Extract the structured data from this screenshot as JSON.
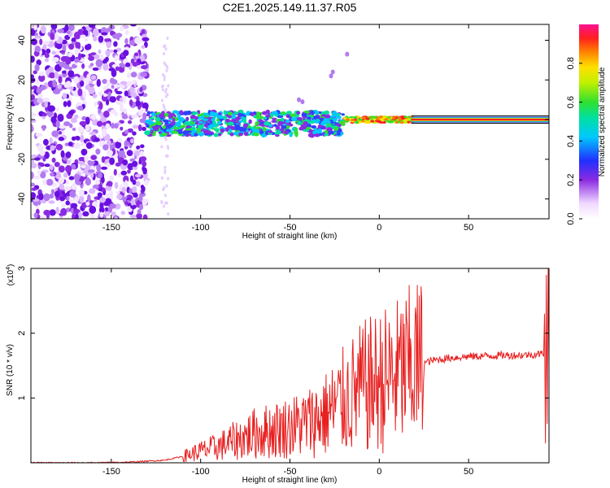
{
  "title": "C2E1.2025.149.11.37.R05",
  "chart_data": [
    {
      "type": "heatmap",
      "xlabel": "Height of straight line (km)",
      "ylabel": "Frequency (Hz)",
      "xlim": [
        -195,
        95
      ],
      "ylim": [
        -50,
        48
      ],
      "xticks": [
        -150,
        -100,
        -50,
        0,
        50
      ],
      "yticks": [
        -40,
        -20,
        0,
        20,
        40
      ],
      "colorbar": {
        "label": "Normalized spectral amplitude",
        "range": [
          0.0,
          1.0
        ],
        "ticks": [
          0.0,
          0.2,
          0.4,
          0.6,
          0.8
        ]
      },
      "description_regions": [
        {
          "x_range": [
            -195,
            -130
          ],
          "freq_range": [
            -50,
            48
          ],
          "amplitude": 0.1
        },
        {
          "x_range": [
            -130,
            -20
          ],
          "freq_center": -2,
          "amplitude": 0.3
        },
        {
          "x_range": [
            -20,
            20
          ],
          "freq_center": 0,
          "amplitude": 0.8
        },
        {
          "x_range": [
            20,
            95
          ],
          "freq_center": 0,
          "amplitude": 1.0
        }
      ]
    },
    {
      "type": "line",
      "xlabel": "Height of straight line (km)",
      "ylabel": "SNR (10 * v/v)",
      "yunit_label": "(x10",
      "yunit_exp": "4",
      "yunit_close": ")",
      "xlim": [
        -195,
        95
      ],
      "ylim": [
        0,
        3
      ],
      "xticks": [
        -150,
        -100,
        -50,
        0,
        50
      ],
      "yticks": [
        1,
        2,
        3
      ],
      "series": [
        {
          "color": "#e82020",
          "x": [
            -195,
            -160,
            -140,
            -120,
            -110,
            -100,
            -90,
            -80,
            -70,
            -60,
            -50,
            -40,
            -30,
            -20,
            -10,
            0,
            10,
            20,
            30,
            40,
            50,
            60,
            70,
            80,
            90,
            95
          ],
          "y": [
            0.0,
            0.0,
            0.01,
            0.04,
            0.1,
            0.18,
            0.25,
            0.35,
            0.45,
            0.5,
            0.55,
            0.62,
            0.75,
            0.95,
            1.15,
            1.25,
            1.35,
            1.5,
            1.58,
            1.62,
            1.64,
            1.65,
            1.66,
            1.66,
            1.68,
            1.7
          ]
        }
      ]
    }
  ]
}
